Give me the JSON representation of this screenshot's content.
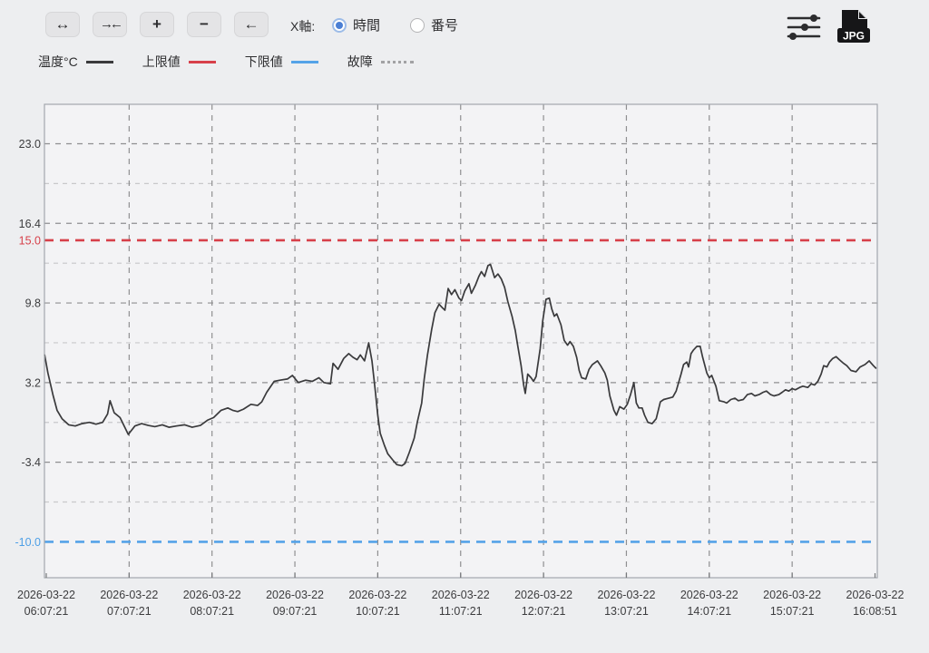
{
  "toolbar": {
    "x_axis_label": "X軸:",
    "buttons": [
      {
        "name": "expand-horizontal",
        "glyph": "↔"
      },
      {
        "name": "compress-horizontal",
        "glyph": "→←"
      },
      {
        "name": "zoom-in",
        "glyph": "+"
      },
      {
        "name": "zoom-out",
        "glyph": "−"
      },
      {
        "name": "pan-left",
        "glyph": "←"
      }
    ],
    "radio_options": [
      {
        "label": "時間",
        "selected": true
      },
      {
        "label": "番号",
        "selected": false
      }
    ],
    "export_label": "JPG"
  },
  "legend": {
    "items": [
      {
        "label": "温度°C",
        "color": "#3a3a3c",
        "style": "solid"
      },
      {
        "label": "上限値",
        "color": "#d7404a",
        "style": "solid"
      },
      {
        "label": "下限値",
        "color": "#55a3e8",
        "style": "solid"
      },
      {
        "label": "故障",
        "color": "#a2a2a4",
        "style": "dotted"
      }
    ]
  },
  "colors": {
    "page_bg": "#edeef0",
    "plot_bg": "#f3f3f5",
    "plot_border": "#a3a7ad",
    "grid_major": "#8f8f91",
    "grid_minor": "#c8c8ca",
    "series": "#3a3a3c",
    "upper_limit": "#d7404a",
    "lower_limit": "#55a3e8",
    "text": "#3c3c3e",
    "tick": "#77797c"
  },
  "chart_data": {
    "type": "line",
    "xlabel": "",
    "ylabel": "温度°C",
    "x_unit": "hours since first sample",
    "ylim": [
      -13.0,
      26.3
    ],
    "xlim_hours": [
      -0.02,
      10.03
    ],
    "grid": true,
    "x_tick_labels": [
      {
        "date": "2026-03-22",
        "time": "06:07:21"
      },
      {
        "date": "2026-03-22",
        "time": "07:07:21"
      },
      {
        "date": "2026-03-22",
        "time": "08:07:21"
      },
      {
        "date": "2026-03-22",
        "time": "09:07:21"
      },
      {
        "date": "2026-03-22",
        "time": "10:07:21"
      },
      {
        "date": "2026-03-22",
        "time": "11:07:21"
      },
      {
        "date": "2026-03-22",
        "time": "12:07:21"
      },
      {
        "date": "2026-03-22",
        "time": "13:07:21"
      },
      {
        "date": "2026-03-22",
        "time": "14:07:21"
      },
      {
        "date": "2026-03-22",
        "time": "15:07:21"
      },
      {
        "date": "2026-03-22",
        "time": "16:08:51"
      }
    ],
    "y_ticks": [
      {
        "value": 23.0,
        "label": "23.0",
        "color": "#3c3c3e"
      },
      {
        "value": 16.4,
        "label": "16.4",
        "color": "#3c3c3e"
      },
      {
        "value": 15.0,
        "label": "15.0",
        "color": "#d7404a"
      },
      {
        "value": 9.8,
        "label": "9.8",
        "color": "#3c3c3e"
      },
      {
        "value": 3.2,
        "label": "3.2",
        "color": "#3c3c3e"
      },
      {
        "value": -3.4,
        "label": "-3.4",
        "color": "#3c3c3e"
      },
      {
        "value": -10.0,
        "label": "-10.0",
        "color": "#4d9fe6"
      }
    ],
    "y_major_gridlines": [
      23.0,
      16.4,
      9.8,
      3.2,
      -3.4
    ],
    "y_minor_gridlines": [
      19.7,
      13.1,
      6.5,
      -0.1,
      -6.7
    ],
    "upper_limit": 15.0,
    "lower_limit": -10.0,
    "series": [
      {
        "name": "温度°C",
        "points": [
          [
            -0.02,
            5.5
          ],
          [
            0.02,
            4.0
          ],
          [
            0.08,
            2.2
          ],
          [
            0.13,
            0.9
          ],
          [
            0.19,
            0.2
          ],
          [
            0.27,
            -0.3
          ],
          [
            0.35,
            -0.4
          ],
          [
            0.43,
            -0.2
          ],
          [
            0.52,
            -0.1
          ],
          [
            0.6,
            -0.25
          ],
          [
            0.68,
            -0.1
          ],
          [
            0.74,
            0.6
          ],
          [
            0.77,
            1.7
          ],
          [
            0.82,
            0.7
          ],
          [
            0.89,
            0.3
          ],
          [
            0.99,
            -1.1
          ],
          [
            1.07,
            -0.4
          ],
          [
            1.15,
            -0.2
          ],
          [
            1.23,
            -0.35
          ],
          [
            1.31,
            -0.45
          ],
          [
            1.4,
            -0.3
          ],
          [
            1.48,
            -0.5
          ],
          [
            1.57,
            -0.4
          ],
          [
            1.67,
            -0.3
          ],
          [
            1.76,
            -0.5
          ],
          [
            1.86,
            -0.35
          ],
          [
            1.95,
            0.1
          ],
          [
            2.02,
            0.3
          ],
          [
            2.11,
            0.9
          ],
          [
            2.19,
            1.1
          ],
          [
            2.25,
            0.9
          ],
          [
            2.31,
            0.8
          ],
          [
            2.38,
            1.0
          ],
          [
            2.47,
            1.4
          ],
          [
            2.55,
            1.3
          ],
          [
            2.6,
            1.6
          ],
          [
            2.66,
            2.4
          ],
          [
            2.75,
            3.3
          ],
          [
            2.82,
            3.4
          ],
          [
            2.91,
            3.5
          ],
          [
            2.97,
            3.8
          ],
          [
            3.04,
            3.2
          ],
          [
            3.13,
            3.4
          ],
          [
            3.21,
            3.3
          ],
          [
            3.29,
            3.6
          ],
          [
            3.35,
            3.2
          ],
          [
            3.43,
            3.1
          ],
          [
            3.46,
            4.8
          ],
          [
            3.52,
            4.3
          ],
          [
            3.59,
            5.2
          ],
          [
            3.65,
            5.6
          ],
          [
            3.7,
            5.3
          ],
          [
            3.75,
            5.1
          ],
          [
            3.79,
            5.5
          ],
          [
            3.84,
            5.0
          ],
          [
            3.89,
            6.5
          ],
          [
            3.93,
            5.0
          ],
          [
            3.97,
            2.5
          ],
          [
            4.0,
            0.5
          ],
          [
            4.03,
            -1.0
          ],
          [
            4.08,
            -2.0
          ],
          [
            4.12,
            -2.7
          ],
          [
            4.18,
            -3.2
          ],
          [
            4.23,
            -3.6
          ],
          [
            4.29,
            -3.7
          ],
          [
            4.33,
            -3.5
          ],
          [
            4.38,
            -2.6
          ],
          [
            4.44,
            -1.4
          ],
          [
            4.48,
            0.0
          ],
          [
            4.53,
            1.5
          ],
          [
            4.56,
            3.5
          ],
          [
            4.6,
            5.5
          ],
          [
            4.65,
            7.6
          ],
          [
            4.69,
            9.0
          ],
          [
            4.74,
            9.7
          ],
          [
            4.78,
            9.4
          ],
          [
            4.81,
            9.2
          ],
          [
            4.85,
            11.0
          ],
          [
            4.89,
            10.5
          ],
          [
            4.93,
            10.9
          ],
          [
            4.98,
            10.2
          ],
          [
            5.01,
            10.0
          ],
          [
            5.05,
            10.8
          ],
          [
            5.1,
            11.4
          ],
          [
            5.13,
            10.6
          ],
          [
            5.18,
            11.3
          ],
          [
            5.22,
            12.0
          ],
          [
            5.25,
            12.4
          ],
          [
            5.29,
            12.0
          ],
          [
            5.33,
            12.9
          ],
          [
            5.36,
            13.0
          ],
          [
            5.41,
            11.9
          ],
          [
            5.45,
            12.2
          ],
          [
            5.49,
            11.8
          ],
          [
            5.53,
            11.1
          ],
          [
            5.57,
            9.9
          ],
          [
            5.62,
            8.7
          ],
          [
            5.66,
            7.5
          ],
          [
            5.69,
            6.2
          ],
          [
            5.73,
            4.6
          ],
          [
            5.76,
            3.0
          ],
          [
            5.78,
            2.3
          ],
          [
            5.81,
            3.9
          ],
          [
            5.85,
            3.6
          ],
          [
            5.88,
            3.3
          ],
          [
            5.91,
            3.7
          ],
          [
            5.96,
            6.0
          ],
          [
            5.99,
            8.3
          ],
          [
            6.03,
            10.1
          ],
          [
            6.07,
            10.2
          ],
          [
            6.1,
            9.3
          ],
          [
            6.13,
            8.7
          ],
          [
            6.16,
            8.9
          ],
          [
            6.21,
            8.0
          ],
          [
            6.25,
            6.7
          ],
          [
            6.29,
            6.3
          ],
          [
            6.32,
            6.6
          ],
          [
            6.36,
            6.2
          ],
          [
            6.4,
            5.3
          ],
          [
            6.43,
            4.2
          ],
          [
            6.46,
            3.6
          ],
          [
            6.51,
            3.5
          ],
          [
            6.55,
            4.3
          ],
          [
            6.59,
            4.7
          ],
          [
            6.65,
            5.0
          ],
          [
            6.69,
            4.6
          ],
          [
            6.74,
            4.0
          ],
          [
            6.77,
            3.4
          ],
          [
            6.8,
            2.1
          ],
          [
            6.85,
            0.9
          ],
          [
            6.88,
            0.5
          ],
          [
            6.92,
            1.2
          ],
          [
            6.97,
            1.0
          ],
          [
            7.01,
            1.4
          ],
          [
            7.05,
            2.2
          ],
          [
            7.09,
            3.2
          ],
          [
            7.12,
            1.5
          ],
          [
            7.15,
            1.1
          ],
          [
            7.19,
            1.1
          ],
          [
            7.22,
            0.5
          ],
          [
            7.26,
            -0.1
          ],
          [
            7.31,
            -0.2
          ],
          [
            7.36,
            0.2
          ],
          [
            7.41,
            1.6
          ],
          [
            7.45,
            1.8
          ],
          [
            7.51,
            1.9
          ],
          [
            7.56,
            2.0
          ],
          [
            7.6,
            2.5
          ],
          [
            7.66,
            3.9
          ],
          [
            7.69,
            4.7
          ],
          [
            7.73,
            4.9
          ],
          [
            7.75,
            4.5
          ],
          [
            7.78,
            5.6
          ],
          [
            7.81,
            5.9
          ],
          [
            7.85,
            6.2
          ],
          [
            7.89,
            6.2
          ],
          [
            7.92,
            5.3
          ],
          [
            7.97,
            4.0
          ],
          [
            8.0,
            3.6
          ],
          [
            8.03,
            3.8
          ],
          [
            8.08,
            2.9
          ],
          [
            8.12,
            1.7
          ],
          [
            8.18,
            1.6
          ],
          [
            8.21,
            1.5
          ],
          [
            8.26,
            1.8
          ],
          [
            8.31,
            1.9
          ],
          [
            8.35,
            1.7
          ],
          [
            8.41,
            1.8
          ],
          [
            8.46,
            2.2
          ],
          [
            8.51,
            2.3
          ],
          [
            8.55,
            2.1
          ],
          [
            8.6,
            2.2
          ],
          [
            8.65,
            2.4
          ],
          [
            8.69,
            2.5
          ],
          [
            8.74,
            2.2
          ],
          [
            8.78,
            2.1
          ],
          [
            8.84,
            2.2
          ],
          [
            8.88,
            2.4
          ],
          [
            8.92,
            2.6
          ],
          [
            8.96,
            2.5
          ],
          [
            9.0,
            2.7
          ],
          [
            9.04,
            2.6
          ],
          [
            9.09,
            2.8
          ],
          [
            9.13,
            2.9
          ],
          [
            9.19,
            2.8
          ],
          [
            9.23,
            3.1
          ],
          [
            9.27,
            3.0
          ],
          [
            9.31,
            3.3
          ],
          [
            9.35,
            3.9
          ],
          [
            9.38,
            4.6
          ],
          [
            9.42,
            4.5
          ],
          [
            9.45,
            4.9
          ],
          [
            9.49,
            5.2
          ],
          [
            9.53,
            5.35
          ],
          [
            9.57,
            5.1
          ],
          [
            9.62,
            4.8
          ],
          [
            9.66,
            4.6
          ],
          [
            9.71,
            4.2
          ],
          [
            9.77,
            4.1
          ],
          [
            9.82,
            4.5
          ],
          [
            9.88,
            4.7
          ],
          [
            9.93,
            5.0
          ],
          [
            9.98,
            4.6
          ],
          [
            10.01,
            4.4
          ]
        ]
      }
    ]
  }
}
